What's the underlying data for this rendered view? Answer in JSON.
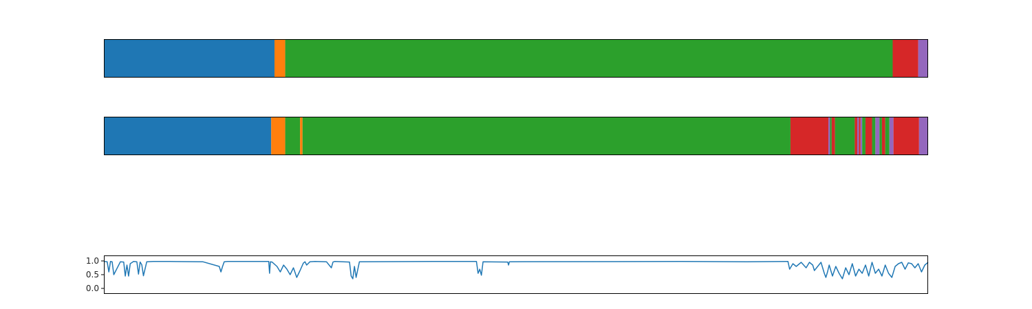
{
  "palette": {
    "blue": "#1f77b4",
    "orange": "#ff7f0e",
    "green": "#2ca02c",
    "red": "#d62728",
    "purple": "#9467bd",
    "frame": "#000000",
    "background": "#ffffff"
  },
  "chart_data": [
    {
      "type": "bar",
      "orientation": "horizontal-stacked-segments",
      "x_range": [
        0,
        1
      ],
      "axes_visible": false,
      "segments": [
        {
          "start": 0.0,
          "end": 0.207,
          "color": "blue"
        },
        {
          "start": 0.207,
          "end": 0.22,
          "color": "orange"
        },
        {
          "start": 0.22,
          "end": 0.957,
          "color": "green"
        },
        {
          "start": 0.957,
          "end": 0.988,
          "color": "red"
        },
        {
          "start": 0.988,
          "end": 1.0,
          "color": "purple"
        }
      ]
    },
    {
      "type": "bar",
      "orientation": "horizontal-stacked-segments",
      "x_range": [
        0,
        1
      ],
      "axes_visible": false,
      "segments": [
        {
          "start": 0.0,
          "end": 0.203,
          "color": "blue"
        },
        {
          "start": 0.203,
          "end": 0.22,
          "color": "orange"
        },
        {
          "start": 0.22,
          "end": 0.238,
          "color": "green"
        },
        {
          "start": 0.238,
          "end": 0.241,
          "color": "orange"
        },
        {
          "start": 0.241,
          "end": 0.833,
          "color": "green"
        },
        {
          "start": 0.833,
          "end": 0.879,
          "color": "red"
        },
        {
          "start": 0.879,
          "end": 0.881,
          "color": "purple"
        },
        {
          "start": 0.881,
          "end": 0.883,
          "color": "green"
        },
        {
          "start": 0.883,
          "end": 0.887,
          "color": "red"
        },
        {
          "start": 0.887,
          "end": 0.911,
          "color": "green"
        },
        {
          "start": 0.911,
          "end": 0.914,
          "color": "red"
        },
        {
          "start": 0.914,
          "end": 0.916,
          "color": "purple"
        },
        {
          "start": 0.916,
          "end": 0.918,
          "color": "red"
        },
        {
          "start": 0.918,
          "end": 0.92,
          "color": "purple"
        },
        {
          "start": 0.92,
          "end": 0.924,
          "color": "green"
        },
        {
          "start": 0.924,
          "end": 0.932,
          "color": "red"
        },
        {
          "start": 0.932,
          "end": 0.936,
          "color": "green"
        },
        {
          "start": 0.936,
          "end": 0.941,
          "color": "purple"
        },
        {
          "start": 0.941,
          "end": 0.944,
          "color": "green"
        },
        {
          "start": 0.944,
          "end": 0.948,
          "color": "red"
        },
        {
          "start": 0.948,
          "end": 0.953,
          "color": "green"
        },
        {
          "start": 0.953,
          "end": 0.958,
          "color": "purple"
        },
        {
          "start": 0.958,
          "end": 0.989,
          "color": "red"
        },
        {
          "start": 0.989,
          "end": 1.0,
          "color": "purple"
        }
      ]
    },
    {
      "type": "line",
      "x_range": [
        0,
        1
      ],
      "ylim": [
        -0.2,
        1.2
      ],
      "ytick_values": [
        0.0,
        0.5,
        1.0
      ],
      "ytick_labels": [
        "0.0",
        "0.5",
        "1.0"
      ],
      "x_ticks_visible": false,
      "grid": false,
      "series": [
        {
          "color": "blue",
          "x": [
            0.0,
            0.004,
            0.006,
            0.008,
            0.01,
            0.012,
            0.02,
            0.024,
            0.026,
            0.028,
            0.03,
            0.032,
            0.036,
            0.04,
            0.042,
            0.044,
            0.046,
            0.048,
            0.052,
            0.06,
            0.08,
            0.12,
            0.14,
            0.142,
            0.144,
            0.146,
            0.15,
            0.2,
            0.201,
            0.202,
            0.204,
            0.21,
            0.214,
            0.218,
            0.222,
            0.226,
            0.23,
            0.234,
            0.238,
            0.242,
            0.244,
            0.246,
            0.25,
            0.256,
            0.27,
            0.276,
            0.278,
            0.28,
            0.29,
            0.298,
            0.3,
            0.302,
            0.304,
            0.306,
            0.31,
            0.4,
            0.452,
            0.454,
            0.456,
            0.458,
            0.46,
            0.49,
            0.491,
            0.492,
            0.7,
            0.78,
            0.83,
            0.832,
            0.836,
            0.84,
            0.846,
            0.852,
            0.856,
            0.86,
            0.862,
            0.866,
            0.87,
            0.874,
            0.876,
            0.878,
            0.88,
            0.884,
            0.888,
            0.892,
            0.896,
            0.9,
            0.904,
            0.908,
            0.912,
            0.916,
            0.92,
            0.924,
            0.928,
            0.932,
            0.936,
            0.94,
            0.944,
            0.948,
            0.952,
            0.956,
            0.96,
            0.964,
            0.968,
            0.972,
            0.976,
            0.98,
            0.984,
            0.988,
            0.992,
            0.996,
            1.0
          ],
          "y": [
            0.98,
            0.97,
            0.6,
            0.98,
            0.97,
            0.5,
            0.97,
            0.96,
            0.45,
            0.85,
            0.45,
            0.9,
            0.98,
            0.97,
            0.52,
            0.96,
            0.86,
            0.46,
            0.97,
            0.98,
            0.98,
            0.97,
            0.8,
            0.6,
            0.8,
            0.97,
            0.98,
            0.98,
            0.55,
            0.97,
            0.96,
            0.8,
            0.6,
            0.85,
            0.7,
            0.5,
            0.75,
            0.4,
            0.65,
            0.92,
            0.97,
            0.85,
            0.97,
            0.98,
            0.97,
            0.75,
            0.96,
            0.98,
            0.97,
            0.96,
            0.45,
            0.35,
            0.8,
            0.4,
            0.97,
            0.98,
            0.98,
            0.55,
            0.7,
            0.48,
            0.97,
            0.96,
            0.85,
            0.97,
            0.98,
            0.97,
            0.98,
            0.7,
            0.9,
            0.8,
            0.95,
            0.75,
            0.95,
            0.85,
            0.65,
            0.8,
            0.95,
            0.55,
            0.4,
            0.6,
            0.85,
            0.45,
            0.8,
            0.55,
            0.35,
            0.75,
            0.5,
            0.9,
            0.45,
            0.7,
            0.55,
            0.85,
            0.45,
            0.95,
            0.55,
            0.7,
            0.45,
            0.85,
            0.55,
            0.4,
            0.8,
            0.9,
            0.95,
            0.7,
            0.93,
            0.9,
            0.75,
            0.9,
            0.6,
            0.85,
            0.95
          ]
        }
      ]
    }
  ]
}
